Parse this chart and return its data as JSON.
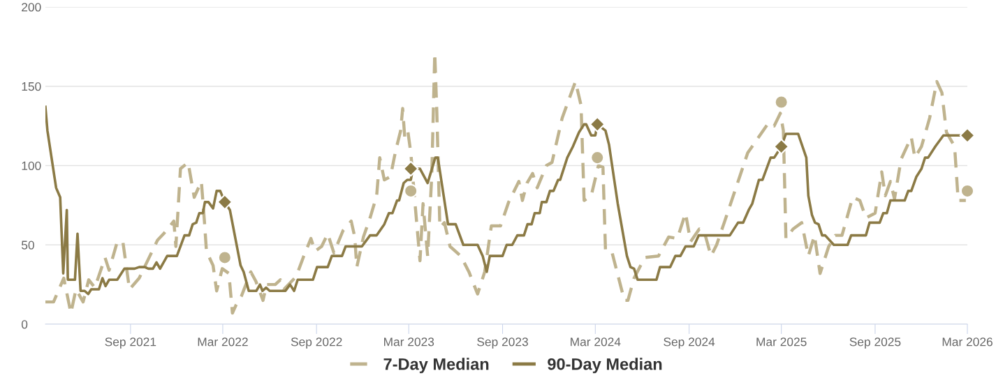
{
  "chart_data": {
    "type": "line",
    "xlim": [
      "2021-03-18",
      "2026-03-01"
    ],
    "ylim": [
      0,
      200
    ],
    "yticks": [
      0,
      50,
      100,
      150,
      200
    ],
    "xticks": [
      {
        "value": "2021-09-01",
        "label": "Sep 2021"
      },
      {
        "value": "2022-03-01",
        "label": "Mar 2022"
      },
      {
        "value": "2022-09-01",
        "label": "Sep 2022"
      },
      {
        "value": "2023-03-01",
        "label": "Mar 2023"
      },
      {
        "value": "2023-09-01",
        "label": "Sep 2023"
      },
      {
        "value": "2024-03-01",
        "label": "Mar 2024"
      },
      {
        "value": "2024-09-01",
        "label": "Sep 2024"
      },
      {
        "value": "2025-03-01",
        "label": "Mar 2025"
      },
      {
        "value": "2025-09-01",
        "label": "Sep 2025"
      },
      {
        "value": "2026-03-01",
        "label": "Mar 2026"
      }
    ],
    "grid": "y",
    "legend": "bottom",
    "series": [
      {
        "name": "7-Day Median",
        "color": "#bfb38e",
        "line_style": "dashed",
        "marker": "none",
        "x": [
          "2021-03-18",
          "2021-04-03",
          "2021-04-23",
          "2021-05-07",
          "2021-05-17",
          "2021-05-31",
          "2021-06-11",
          "2021-06-23",
          "2021-07-13",
          "2021-07-21",
          "2021-08-06",
          "2021-08-17",
          "2021-08-30",
          "2021-09-18",
          "2021-10-24",
          "2021-11-05",
          "2021-11-25",
          "2021-11-29",
          "2021-12-08",
          "2021-12-23",
          "2022-01-04",
          "2022-01-18",
          "2022-01-24",
          "2022-01-28",
          "2022-02-10",
          "2022-02-17",
          "2022-02-28",
          "2022-03-13",
          "2022-03-20",
          "2022-03-27",
          "2022-04-07",
          "2022-04-25",
          "2022-05-05",
          "2022-05-19",
          "2022-05-26",
          "2022-06-12",
          "2022-06-22",
          "2022-06-29",
          "2022-07-23",
          "2022-08-07",
          "2022-08-21",
          "2022-08-29",
          "2022-09-11",
          "2022-09-23",
          "2022-10-05",
          "2022-10-23",
          "2022-11-08",
          "2022-11-15",
          "2022-11-19",
          "2022-12-02",
          "2022-12-15",
          "2022-12-28",
          "2023-01-03",
          "2023-01-12",
          "2023-01-24",
          "2023-02-03",
          "2023-02-13",
          "2023-02-17",
          "2023-02-21",
          "2023-02-27",
          "2023-03-05",
          "2023-03-13",
          "2023-03-23",
          "2023-03-29",
          "2023-04-07",
          "2023-04-15",
          "2023-04-21",
          "2023-04-25",
          "2023-05-01",
          "2023-05-10",
          "2023-05-21",
          "2023-06-11",
          "2023-06-27",
          "2023-07-14",
          "2023-07-28",
          "2023-08-10",
          "2023-08-28",
          "2023-09-13",
          "2023-10-03",
          "2023-10-10",
          "2023-10-19",
          "2023-10-30",
          "2023-11-08",
          "2023-11-26",
          "2023-12-07",
          "2023-12-27",
          "2024-01-22",
          "2024-02-02",
          "2024-02-08",
          "2024-02-22",
          "2024-03-07",
          "2024-03-16",
          "2024-03-21",
          "2024-04-03",
          "2024-04-27",
          "2024-05-04",
          "2024-05-16",
          "2024-06-06",
          "2024-07-03",
          "2024-07-23",
          "2024-08-09",
          "2024-08-25",
          "2024-09-04",
          "2024-09-21",
          "2024-10-01",
          "2024-10-14",
          "2024-10-25",
          "2024-11-10",
          "2024-12-03",
          "2024-12-25",
          "2025-02-04",
          "2025-02-15",
          "2025-02-27",
          "2025-03-05",
          "2025-03-10",
          "2025-03-24",
          "2025-04-10",
          "2025-04-23",
          "2025-05-05",
          "2025-05-16",
          "2025-06-02",
          "2025-06-15",
          "2025-06-28",
          "2025-07-19",
          "2025-08-02",
          "2025-08-14",
          "2025-09-01",
          "2025-09-14",
          "2025-09-21",
          "2025-10-01",
          "2025-10-09",
          "2025-10-22",
          "2025-11-11",
          "2025-11-18",
          "2025-12-01",
          "2025-12-17",
          "2025-12-31",
          "2026-01-10",
          "2026-01-19",
          "2026-02-04",
          "2026-02-11",
          "2026-02-26"
        ],
        "values": [
          14,
          14,
          29,
          7,
          22,
          14,
          28,
          23,
          42,
          34,
          52,
          52,
          22,
          29,
          53,
          57,
          65,
          49,
          98,
          102,
          80,
          90,
          65,
          46,
          37,
          21,
          35,
          32,
          7,
          12,
          18,
          33,
          27,
          15,
          25,
          25,
          28,
          22,
          30,
          43,
          54,
          46,
          49,
          57,
          45,
          59,
          65,
          55,
          36,
          55,
          67,
          81,
          105,
          91,
          93,
          109,
          122,
          136,
          118,
          122,
          108,
          77,
          40,
          76,
          43,
          93,
          171,
          134,
          61,
          64,
          49,
          43,
          33,
          19,
          33,
          62,
          62,
          77,
          90,
          78,
          89,
          95,
          86,
          100,
          102,
          130,
          153,
          138,
          78,
          81,
          100,
          99,
          46,
          45,
          15,
          15,
          29,
          42,
          43,
          55,
          54,
          70,
          52,
          60,
          58,
          43,
          50,
          65,
          87,
          108,
          127,
          125,
          133,
          122,
          54,
          60,
          64,
          43,
          56,
          32,
          49,
          56,
          56,
          80,
          78,
          67,
          70,
          96,
          81,
          90,
          79,
          104,
          118,
          105,
          112,
          130,
          153,
          146,
          121,
          112,
          78,
          78
        ]
      },
      {
        "name": "90-Day Median",
        "color": "#8b7a45",
        "line_style": "solid",
        "marker": "none",
        "x": [
          "2021-03-18",
          "2021-03-22",
          "2021-04-08",
          "2021-04-16",
          "2021-04-22",
          "2021-04-29",
          "2021-05-01",
          "2021-05-15",
          "2021-05-20",
          "2021-05-26",
          "2021-06-03",
          "2021-06-10",
          "2021-06-16",
          "2021-07-01",
          "2021-07-08",
          "2021-07-14",
          "2021-07-21",
          "2021-08-06",
          "2021-08-20",
          "2021-09-09",
          "2021-09-18",
          "2021-09-29",
          "2021-10-06",
          "2021-10-15",
          "2021-10-22",
          "2021-10-29",
          "2021-11-12",
          "2021-12-01",
          "2021-12-16",
          "2021-12-25",
          "2022-01-01",
          "2022-01-08",
          "2022-01-14",
          "2022-01-21",
          "2022-01-25",
          "2022-02-01",
          "2022-02-10",
          "2022-02-17",
          "2022-02-24",
          "2022-03-05",
          "2022-03-15",
          "2022-04-05",
          "2022-04-11",
          "2022-04-21",
          "2022-05-06",
          "2022-05-13",
          "2022-05-18",
          "2022-05-25",
          "2022-06-01",
          "2022-07-02",
          "2022-07-11",
          "2022-07-19",
          "2022-07-26",
          "2022-08-25",
          "2022-09-02",
          "2022-09-23",
          "2022-10-01",
          "2022-10-21",
          "2022-10-28",
          "2022-11-29",
          "2022-12-15",
          "2022-12-28",
          "2023-01-12",
          "2023-01-21",
          "2023-01-28",
          "2023-02-06",
          "2023-02-10",
          "2023-02-19",
          "2023-02-26",
          "2023-03-05",
          "2023-03-09",
          "2023-03-23",
          "2023-04-07",
          "2023-04-22",
          "2023-04-27",
          "2023-05-17",
          "2023-06-01",
          "2023-06-16",
          "2023-07-14",
          "2023-07-24",
          "2023-08-01",
          "2023-08-07",
          "2023-09-01",
          "2023-09-09",
          "2023-09-20",
          "2023-09-30",
          "2023-10-13",
          "2023-10-20",
          "2023-10-28",
          "2023-11-03",
          "2023-11-13",
          "2023-11-17",
          "2023-11-26",
          "2023-12-03",
          "2023-12-10",
          "2023-12-19",
          "2023-12-23",
          "2024-01-06",
          "2024-01-17",
          "2024-01-29",
          "2024-02-08",
          "2024-02-12",
          "2024-02-22",
          "2024-03-01",
          "2024-03-05",
          "2024-03-21",
          "2024-03-28",
          "2024-04-14",
          "2024-05-02",
          "2024-05-09",
          "2024-05-16",
          "2024-05-23",
          "2024-06-29",
          "2024-07-06",
          "2024-07-26",
          "2024-08-05",
          "2024-08-15",
          "2024-08-25",
          "2024-09-10",
          "2024-09-20",
          "2024-11-20",
          "2024-12-06",
          "2024-12-16",
          "2024-12-27",
          "2025-01-03",
          "2025-01-16",
          "2025-01-23",
          "2025-02-08",
          "2025-02-15",
          "2025-03-01",
          "2025-03-10",
          "2025-04-03",
          "2025-04-19",
          "2025-04-23",
          "2025-04-30",
          "2025-05-06",
          "2025-05-13",
          "2025-05-20",
          "2025-05-26",
          "2025-06-12",
          "2025-07-09",
          "2025-07-16",
          "2025-08-14",
          "2025-08-21",
          "2025-09-10",
          "2025-09-17",
          "2025-09-24",
          "2025-10-01",
          "2025-10-29",
          "2025-11-05",
          "2025-11-11",
          "2025-11-21",
          "2025-12-01",
          "2025-12-08",
          "2025-12-14",
          "2025-12-28",
          "2026-01-13",
          "2026-03-01"
        ],
        "values": [
          137,
          122,
          86,
          80,
          32,
          72,
          28,
          28,
          57,
          21,
          21,
          19,
          22,
          22,
          29,
          24,
          28,
          28,
          35,
          35,
          36,
          36,
          35,
          35,
          39,
          35,
          43,
          43,
          56,
          56,
          63,
          64,
          70,
          70,
          77,
          77,
          73,
          84,
          84,
          77,
          72,
          37,
          33,
          21,
          21,
          25,
          21,
          23,
          21,
          21,
          25,
          21,
          28,
          28,
          36,
          36,
          43,
          43,
          49,
          49,
          56,
          56,
          63,
          70,
          70,
          78,
          78,
          89,
          91,
          91,
          98,
          98,
          89,
          105,
          105,
          63,
          63,
          50,
          50,
          43,
          33,
          43,
          43,
          50,
          50,
          56,
          56,
          63,
          63,
          70,
          70,
          77,
          77,
          84,
          84,
          91,
          91,
          105,
          112,
          121,
          126,
          126,
          119,
          119,
          126,
          122,
          113,
          76,
          43,
          36,
          35,
          28,
          28,
          36,
          36,
          43,
          43,
          49,
          49,
          56,
          56,
          64,
          64,
          72,
          76,
          91,
          91,
          105,
          105,
          112,
          120,
          120,
          105,
          81,
          69,
          64,
          63,
          56,
          56,
          50,
          50,
          56,
          56,
          64,
          64,
          70,
          70,
          78,
          78,
          84,
          84,
          93,
          98,
          105,
          105,
          112,
          119,
          119
        ]
      },
      {
        "type": "scatter",
        "color": "#bfb38e",
        "marker": "circle",
        "x": [
          "2022-03-05",
          "2023-03-05",
          "2024-03-05",
          "2025-03-01",
          "2026-03-01"
        ],
        "values": [
          42,
          84,
          105,
          140,
          84
        ]
      },
      {
        "type": "scatter",
        "color": "#8b7a45",
        "marker": "diamond",
        "x": [
          "2022-03-05",
          "2023-03-05",
          "2024-03-05",
          "2025-03-01",
          "2026-03-01"
        ],
        "values": [
          77,
          98,
          126,
          112,
          119
        ]
      }
    ]
  }
}
